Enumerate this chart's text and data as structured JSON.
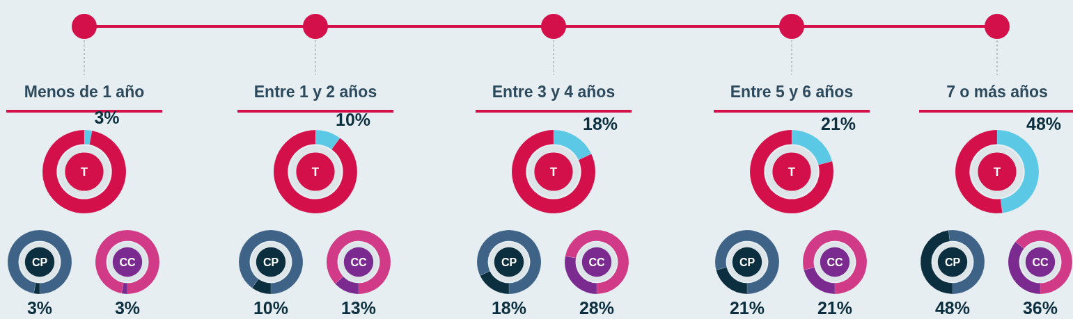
{
  "chart_data": [
    {
      "type": "other",
      "annotations": [
        "Menos de 1 año",
        "Entre 1 y 2 años",
        "Entre 3 y 4 años",
        "Entre 5 y 6 años",
        "7 o más años"
      ]
    },
    {
      "type": "donut",
      "title": "T",
      "categories": [
        null,
        null
      ],
      "values": [
        3,
        97
      ],
      "colors": [
        "#5bc8e6",
        "#d4104a"
      ],
      "value_labels": [
        "3%",
        null
      ]
    },
    {
      "type": "donut",
      "title": "CP",
      "categories": [
        null,
        null
      ],
      "values": [
        3,
        97
      ],
      "colors": [
        "#0c2f3f",
        "#3e6387"
      ],
      "value_labels": [
        "3%",
        null
      ]
    },
    {
      "type": "donut",
      "title": "CC",
      "categories": [
        null,
        null
      ],
      "values": [
        3,
        97
      ],
      "colors": [
        "#7b2a8f",
        "#d03a86"
      ],
      "value_labels": [
        "3%",
        null
      ]
    },
    {
      "type": "donut",
      "title": "T",
      "categories": [
        null,
        null
      ],
      "values": [
        10,
        90
      ],
      "colors": [
        "#5bc8e6",
        "#d4104a"
      ],
      "value_labels": [
        "10%",
        null
      ]
    },
    {
      "type": "donut",
      "title": "CP",
      "categories": [
        null,
        null
      ],
      "values": [
        10,
        90
      ],
      "colors": [
        "#0c2f3f",
        "#3e6387"
      ],
      "value_labels": [
        "10%",
        null
      ]
    },
    {
      "type": "donut",
      "title": "CC",
      "categories": [
        null,
        null
      ],
      "values": [
        13,
        87
      ],
      "colors": [
        "#7b2a8f",
        "#d03a86"
      ],
      "value_labels": [
        "13%",
        null
      ]
    },
    {
      "type": "donut",
      "title": "T",
      "categories": [
        null,
        null
      ],
      "values": [
        18,
        82
      ],
      "colors": [
        "#5bc8e6",
        "#d4104a"
      ],
      "value_labels": [
        "18%",
        null
      ]
    },
    {
      "type": "donut",
      "title": "CP",
      "categories": [
        null,
        null
      ],
      "values": [
        18,
        82
      ],
      "colors": [
        "#0c2f3f",
        "#3e6387"
      ],
      "value_labels": [
        "18%",
        null
      ]
    },
    {
      "type": "donut",
      "title": "CC",
      "categories": [
        null,
        null
      ],
      "values": [
        28,
        72
      ],
      "colors": [
        "#7b2a8f",
        "#d03a86"
      ],
      "value_labels": [
        "28%",
        null
      ]
    },
    {
      "type": "donut",
      "title": "T",
      "categories": [
        null,
        null
      ],
      "values": [
        21,
        79
      ],
      "colors": [
        "#5bc8e6",
        "#d4104a"
      ],
      "value_labels": [
        "21%",
        null
      ]
    },
    {
      "type": "donut",
      "title": "CP",
      "categories": [
        null,
        null
      ],
      "values": [
        21,
        79
      ],
      "colors": [
        "#0c2f3f",
        "#3e6387"
      ],
      "value_labels": [
        "21%",
        null
      ]
    },
    {
      "type": "donut",
      "title": "CC",
      "categories": [
        null,
        null
      ],
      "values": [
        21,
        79
      ],
      "colors": [
        "#7b2a8f",
        "#d03a86"
      ],
      "value_labels": [
        "21%",
        null
      ]
    },
    {
      "type": "donut",
      "title": "T",
      "categories": [
        null,
        null
      ],
      "values": [
        48,
        52
      ],
      "colors": [
        "#5bc8e6",
        "#d4104a"
      ],
      "value_labels": [
        "48%",
        null
      ]
    },
    {
      "type": "donut",
      "title": "CP",
      "categories": [
        null,
        null
      ],
      "values": [
        48,
        52
      ],
      "colors": [
        "#0c2f3f",
        "#3e6387"
      ],
      "value_labels": [
        "48%",
        null
      ]
    },
    {
      "type": "donut",
      "title": "CC",
      "categories": [
        null,
        null
      ],
      "values": [
        36,
        64
      ],
      "colors": [
        "#7b2a8f",
        "#d03a86"
      ],
      "value_labels": [
        "36%",
        null
      ]
    }
  ]
}
